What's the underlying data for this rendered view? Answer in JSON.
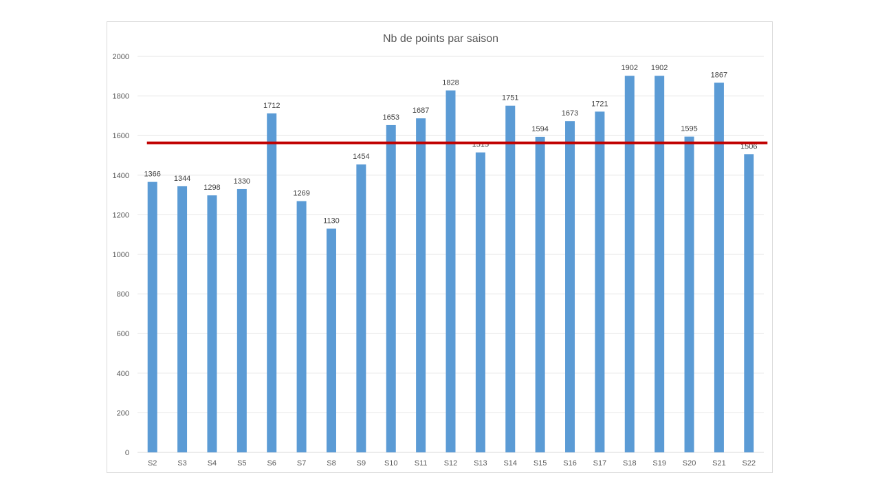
{
  "chart_data": {
    "type": "bar",
    "title": "Nb de points par saison",
    "xlabel": "",
    "ylabel": "",
    "categories": [
      "S2",
      "S3",
      "S4",
      "S5",
      "S6",
      "S7",
      "S8",
      "S9",
      "S10",
      "S11",
      "S12",
      "S13",
      "S14",
      "S15",
      "S16",
      "S17",
      "S18",
      "S19",
      "S20",
      "S21",
      "S22"
    ],
    "series": [
      {
        "values": [
          1366,
          1344,
          1298,
          1330,
          1712,
          1269,
          1130,
          1454,
          1653,
          1687,
          1828,
          1515,
          1751,
          1594,
          1673,
          1721,
          1902,
          1902,
          1595,
          1867,
          1506
        ]
      }
    ],
    "data_labels": [
      "1366",
      "1344",
      "1298",
      "1330",
      "1712",
      "1269",
      "1130",
      "1454",
      "1653",
      "1687",
      "1828",
      "1515",
      "1751",
      "1594",
      "1673",
      "1721",
      "1902",
      "1902",
      "1595",
      "1867",
      "1506"
    ],
    "ylim": [
      0,
      2000
    ],
    "yticks": [
      0,
      200,
      400,
      600,
      800,
      1000,
      1200,
      1400,
      1600,
      1800,
      2000
    ],
    "ytick_labels": [
      "0",
      "200",
      "400",
      "600",
      "800",
      "1000",
      "1200",
      "1400",
      "1600",
      "1800",
      "2000"
    ],
    "reference_line": {
      "value": 1563
    },
    "grid": true,
    "legend": "none",
    "colors": {
      "bar": "#5b9bd5",
      "reference_line": "#c00000",
      "gridline": "#e6e6e6"
    }
  }
}
